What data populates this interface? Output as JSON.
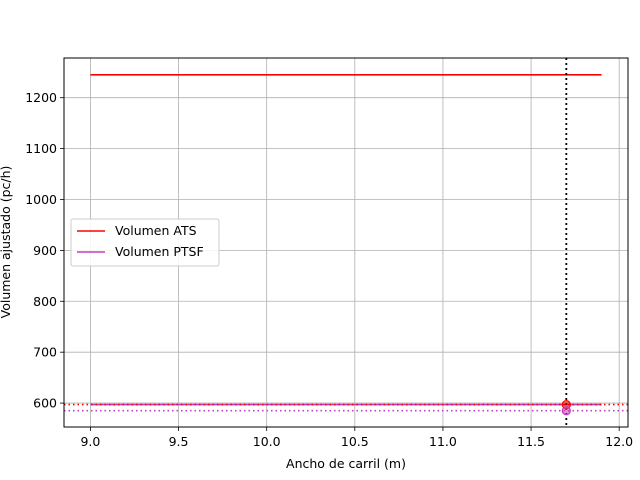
{
  "chart_data": {
    "type": "line",
    "title": "",
    "xlabel": "Ancho de carril (m)",
    "ylabel": "Volumen ajustado (pc/h)",
    "xlim": [
      8.85,
      12.05
    ],
    "ylim": [
      553,
      1278
    ],
    "xticks": [
      "9.0",
      "9.5",
      "10.0",
      "10.5",
      "11.0",
      "11.5",
      "12.0"
    ],
    "yticks": [
      "600",
      "700",
      "800",
      "900",
      "1000",
      "1100",
      "1200"
    ],
    "grid": true,
    "legend_position": "center-left",
    "series": [
      {
        "name": "Volumen ATS",
        "color": "#ff0000",
        "x": [
          9.0,
          11.9
        ],
        "y": [
          1245,
          1245
        ]
      },
      {
        "name": "Volumen PTSF",
        "color": "#bf40bf",
        "x": [
          9.0,
          11.9
        ],
        "y": [
          597,
          597
        ]
      }
    ],
    "reference_lines": {
      "vertical_x": 11.7,
      "vertical_color": "#000000",
      "horizontal": [
        {
          "y": 597,
          "color": "#ff0000"
        },
        {
          "y": 585,
          "color": "#bf40bf"
        }
      ]
    },
    "markers": [
      {
        "x": 11.7,
        "y": 597,
        "color": "#ff0000"
      },
      {
        "x": 11.7,
        "y": 585,
        "color": "#bf40bf"
      }
    ]
  }
}
